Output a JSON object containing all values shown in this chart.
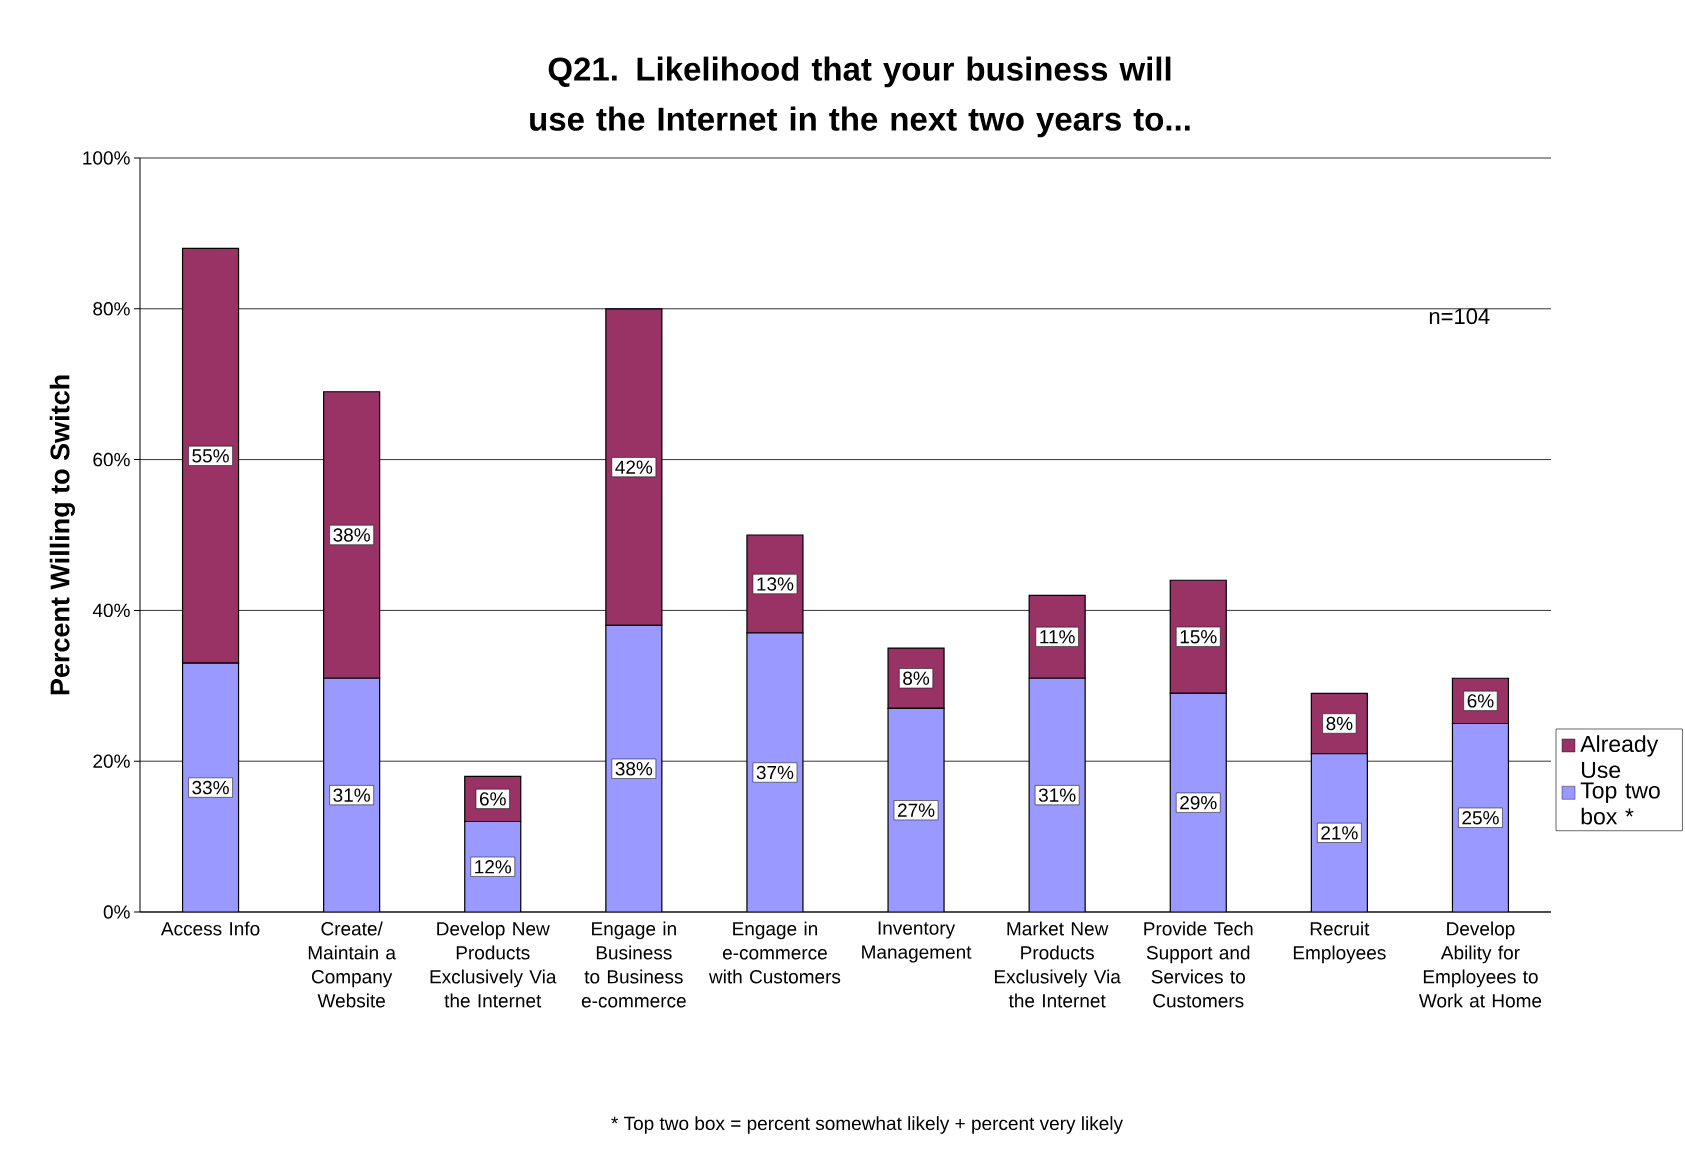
{
  "chart_data": {
    "type": "bar",
    "stacked": true,
    "title": "Q21.  Likelihood that your business will use the Internet in the next two years to...",
    "ylabel": "Percent Willing to Switch",
    "categories": [
      "Access Info",
      "Create/ Maintain a Company Website",
      "Develop New Products Exclusively Via the Internet",
      "Engage in Business to Business e-commerce",
      "Engage in e-commerce with Customers",
      "Inventory Management",
      "Market New Products Exclusively Via the Internet",
      "Provide Tech Support and Services to Customers",
      "Recruit Employees",
      "Develop Ability for Employees to Work at Home"
    ],
    "series": [
      {
        "name": "Top two box *",
        "color": "#9999ff",
        "values": [
          33,
          31,
          12,
          38,
          37,
          27,
          31,
          29,
          21,
          25
        ],
        "value_labels": [
          "33%",
          "31%",
          "12%",
          "38%",
          "37%",
          "27%",
          "31%",
          "29%",
          "21%",
          "25%"
        ]
      },
      {
        "name": "Already Use",
        "color": "#993366",
        "values": [
          55,
          38,
          6,
          42,
          13,
          8,
          11,
          15,
          8,
          6
        ],
        "value_labels": [
          "55%",
          "38%",
          "6%",
          "42%",
          "13%",
          "8%",
          "11%",
          "15%",
          "8%",
          "6%"
        ]
      }
    ],
    "ylim": [
      0,
      100
    ],
    "yticks": [
      {
        "value": 0,
        "label": "0%"
      },
      {
        "value": 20,
        "label": "20%"
      },
      {
        "value": 40,
        "label": "40%"
      },
      {
        "value": 60,
        "label": "60%"
      },
      {
        "value": 80,
        "label": "80%"
      },
      {
        "value": 100,
        "label": "100%"
      }
    ],
    "grid": "y",
    "legend": "right",
    "annotations": [
      "n=104",
      "* Top two box = percent somewhat likely + percent very likely"
    ]
  }
}
